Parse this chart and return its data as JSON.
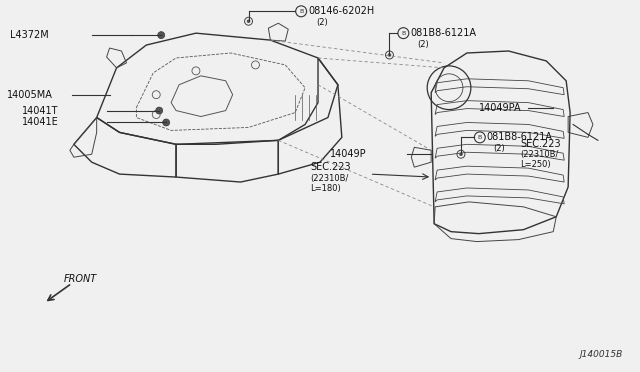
{
  "bg_color": "#f0f0f0",
  "line_color": "#333333",
  "dashed_color": "#666666",
  "diagram_id": "J140015B",
  "font_size_main": 7.0,
  "font_size_small": 6.0,
  "labels": {
    "L4372M": "L4372M",
    "08146-6202H": "08146-6202H",
    "081B8-6121A_top": "081B8-6121A",
    "14049P": "14049P",
    "081B8-6121A_right": "081B8-6121A",
    "SEC223_right_1": "SEC.223",
    "SEC223_right_2": "(22310B/",
    "SEC223_right_3": "L=250)",
    "14049PA": "14049PA",
    "14005MA": "14005MA",
    "14041T": "14041T",
    "14041E": "14041E",
    "SEC223_center_1": "SEC.223",
    "SEC223_center_2": "(22310B/",
    "SEC223_center_3": "L=180)",
    "FRONT": "FRONT",
    "note2": "(2)",
    "note2b": "(2)",
    "note2c": "(2)"
  }
}
